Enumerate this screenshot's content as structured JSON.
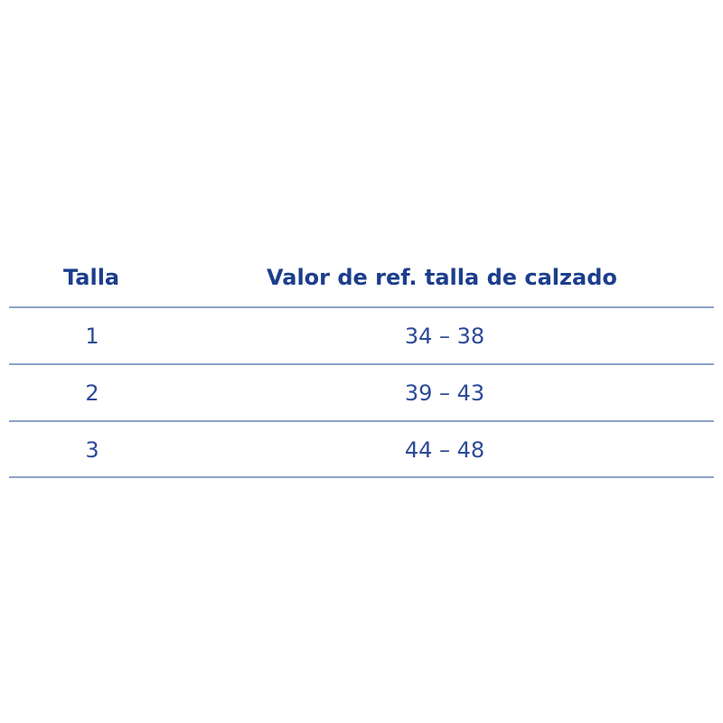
{
  "table": {
    "headers": [
      "Talla",
      "Valor de ref. talla de calzado"
    ],
    "rows": [
      [
        "1",
        "34 – 38"
      ],
      [
        "2",
        "39 – 43"
      ],
      [
        "3",
        "44 – 48"
      ]
    ]
  }
}
